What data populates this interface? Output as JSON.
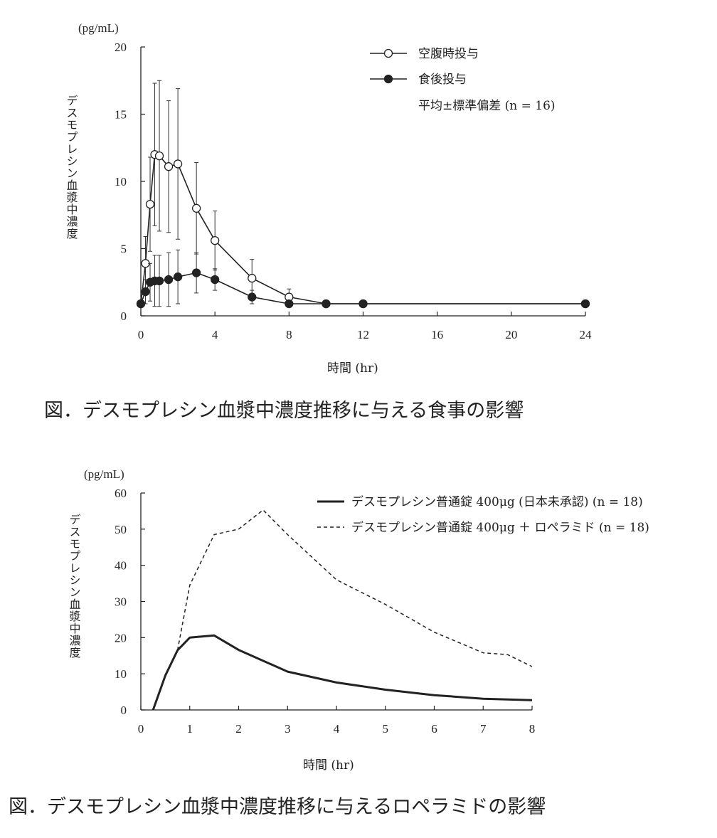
{
  "chart_data": [
    {
      "type": "line",
      "title": "図．デスモプレシン血漿中濃度推移に与える食事の影響",
      "unit_label": "(pg/mL)",
      "ylabel": "デスモプレシン血漿中濃度",
      "xlabel": "時間 (hr)",
      "ylim": [
        0,
        20
      ],
      "xlim": [
        0,
        24
      ],
      "yticks": [
        "0",
        "5",
        "10",
        "15",
        "20"
      ],
      "xticks": [
        "0",
        "4",
        "8",
        "12",
        "16",
        "20",
        "24"
      ],
      "legend_note": "平均±標準偏差 (n = 16)",
      "series": [
        {
          "name": "空腹時投与",
          "marker": "open-circle",
          "x": [
            0,
            0.25,
            0.5,
            0.75,
            1,
            1.5,
            2,
            3,
            4,
            6,
            8,
            10,
            12,
            24
          ],
          "y": [
            0.9,
            3.9,
            8.3,
            12.0,
            11.9,
            11.1,
            11.3,
            8.0,
            5.6,
            2.8,
            1.4,
            0.9,
            0.9,
            0.9
          ],
          "err": [
            0,
            2.0,
            3.5,
            5.3,
            5.6,
            4.9,
            5.6,
            3.4,
            2.2,
            1.4,
            0.6,
            0,
            0,
            0
          ]
        },
        {
          "name": "食後投与",
          "marker": "filled-circle",
          "x": [
            0,
            0.25,
            0.5,
            0.75,
            1,
            1.5,
            2,
            3,
            4,
            6,
            8,
            10,
            12,
            24
          ],
          "y": [
            0.9,
            1.8,
            2.5,
            2.6,
            2.6,
            2.7,
            2.9,
            3.2,
            2.7,
            1.4,
            0.9,
            0.9,
            0.9,
            0.9
          ],
          "err": [
            0,
            0.9,
            1.4,
            1.9,
            1.9,
            2.0,
            2.0,
            1.5,
            0.8,
            0.5,
            0.2,
            0,
            0,
            0
          ]
        }
      ]
    },
    {
      "type": "line",
      "title": "図．デスモプレシン血漿中濃度推移に与えるロペラミドの影響",
      "unit_label": "(pg/mL)",
      "ylabel": "デスモプレシン血漿中濃度",
      "xlabel": "時間 (hr)",
      "ylim": [
        0,
        60
      ],
      "xlim": [
        0,
        8
      ],
      "yticks": [
        "0",
        "10",
        "20",
        "30",
        "40",
        "50",
        "60"
      ],
      "xticks": [
        "0",
        "1",
        "2",
        "3",
        "4",
        "5",
        "6",
        "7",
        "8"
      ],
      "series": [
        {
          "name": "デスモプレシン普通錠 400μg (日本未承認) (n = 18)",
          "style": "solid",
          "x": [
            0.25,
            0.5,
            0.75,
            1,
            1.5,
            2,
            3,
            4,
            5,
            6,
            7,
            8
          ],
          "y": [
            0,
            9.5,
            16.5,
            20.0,
            20.6,
            16.6,
            10.6,
            7.6,
            5.6,
            4.1,
            3.1,
            2.7
          ]
        },
        {
          "name": "デスモプレシン普通錠 400μg ＋ ロペラミド (n = 18)",
          "style": "dashed",
          "x": [
            0.75,
            1,
            1.5,
            2,
            2.5,
            3,
            4,
            5,
            6,
            7,
            7.5,
            8
          ],
          "y": [
            16.5,
            34.5,
            48.5,
            50.0,
            55.3,
            48.5,
            36.0,
            29.2,
            21.5,
            15.8,
            15.3,
            12.0
          ]
        }
      ]
    }
  ]
}
